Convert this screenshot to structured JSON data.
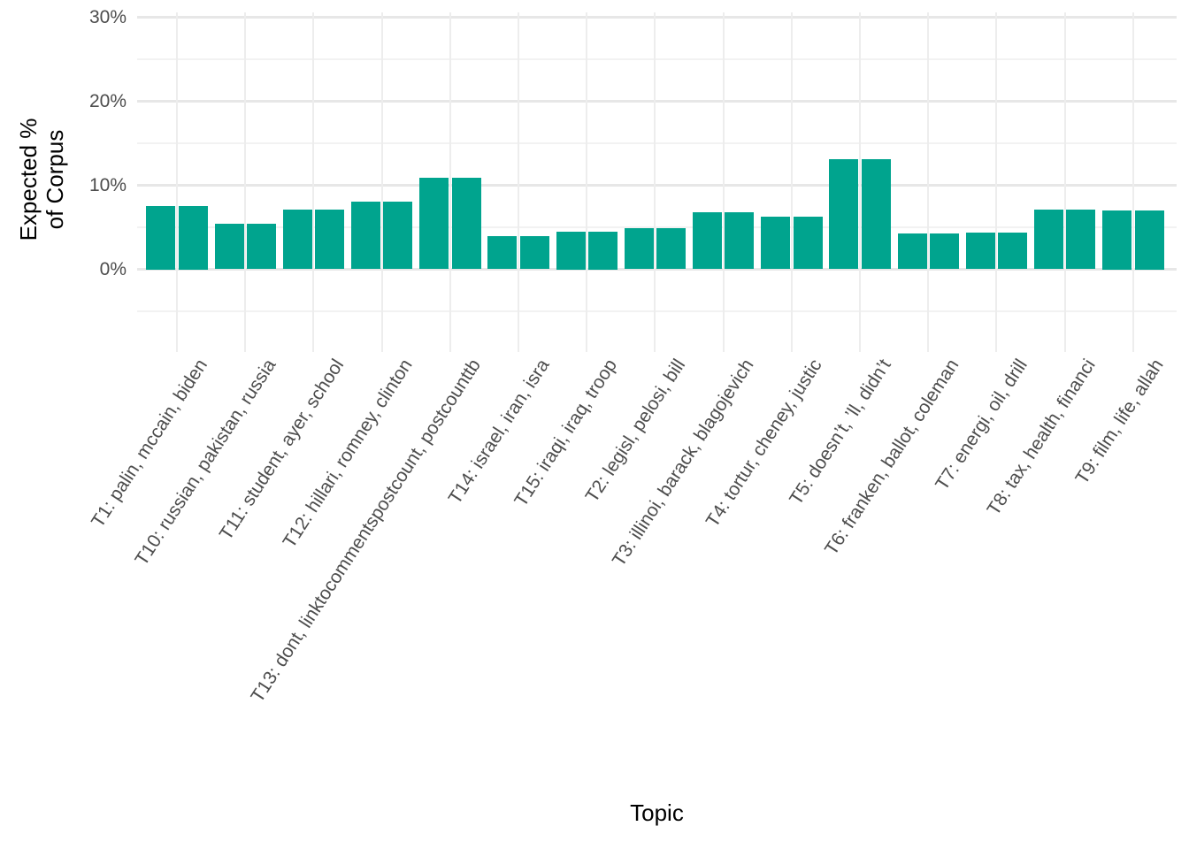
{
  "figure": {
    "background": "#ffffff"
  },
  "chart_data": {
    "type": "bar",
    "title": "",
    "xlabel": "Topic",
    "ylabel": "Expected % of Corpus",
    "ylabel_lines": [
      "Expected %",
      "of Corpus"
    ],
    "legend": false,
    "grid": true,
    "bar_color": "#00a48e",
    "axis_text_color": "#4d4d4d",
    "grid_major_color": "#e7e7e7",
    "grid_minor_color": "#f2f2f2",
    "ylim": [
      0,
      30
    ],
    "y_ticks": [
      {
        "label": "0%",
        "value": 0
      },
      {
        "label": "10%",
        "value": 10
      },
      {
        "label": "20%",
        "value": 20
      },
      {
        "label": "30%",
        "value": 30
      }
    ],
    "y_minor_gridlines": [
      -5,
      5,
      15,
      25
    ],
    "bars_per_category": 2,
    "categories": [
      "T1: palin, mccain, biden",
      "T10: russian, pakistan, russia",
      "T11: student, ayer, school",
      "T12: hillari, romney, clinton",
      "T13: dont, linktocommentspostcount, postcounttb",
      "T14: israel, iran, isra",
      "T15: iraqi, iraq, troop",
      "T2: legisl, pelosi, bill",
      "T3: illinoi, barack, blagojevich",
      "T4: tortur, cheney, justic",
      "T5: doesn’t, ’ll, didn’t",
      "T6: franken, ballot, coleman",
      "T7: energi, oil, drill",
      "T8: tax, health, financi",
      "T9: film, life, allah"
    ],
    "series": [
      {
        "name": "bar-left",
        "values": [
          7.5,
          5.4,
          7.1,
          8.1,
          10.9,
          3.9,
          4.5,
          4.9,
          6.8,
          6.3,
          13.1,
          4.3,
          4.4,
          7.1,
          7.0
        ]
      },
      {
        "name": "bar-right",
        "values": [
          7.5,
          5.4,
          7.1,
          8.1,
          10.9,
          3.9,
          4.5,
          4.9,
          6.8,
          6.3,
          13.1,
          4.3,
          4.4,
          7.1,
          7.0
        ]
      }
    ]
  }
}
